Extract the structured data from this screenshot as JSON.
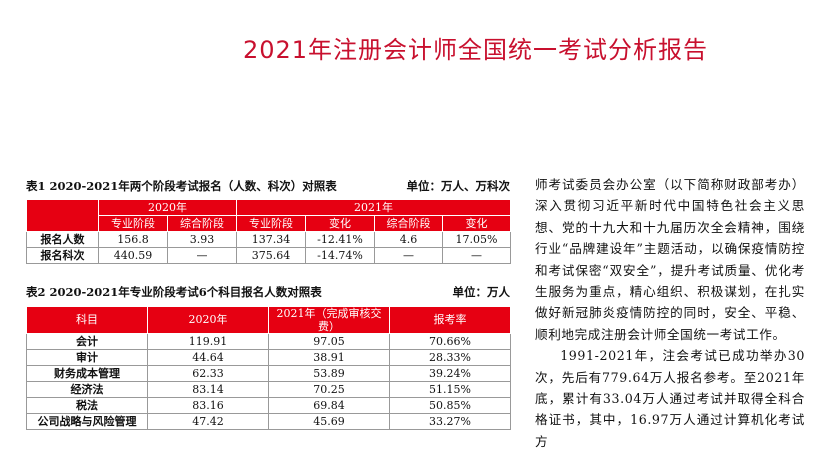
{
  "title": "2021年注册会计师全国统一考试分析报告",
  "table1": {
    "caption": "表1 2020-2021年两个阶段考试报名（人数、科次）对照表",
    "unit": "单位：万人、万科次",
    "year2020": "2020年",
    "year2021": "2021年",
    "subheaders": [
      "专业阶段",
      "综合阶段",
      "专业阶段",
      "变化",
      "综合阶段",
      "变化"
    ],
    "rows": [
      {
        "label": "报名人数",
        "cells": [
          "156.8",
          "3.93",
          "137.34",
          "-12.41%",
          "4.6",
          "17.05%"
        ]
      },
      {
        "label": "报名科次",
        "cells": [
          "440.59",
          "—",
          "375.64",
          "-14.74%",
          "—",
          "—"
        ]
      }
    ]
  },
  "table2": {
    "caption": "表2  2020-2021年专业阶段考试6个科目报名人数对照表",
    "unit": "单位：万人",
    "headers": [
      "科目",
      "2020年",
      "2021年（完成审核交费）",
      "报考率"
    ],
    "rows": [
      [
        "会计",
        "119.91",
        "97.05",
        "70.66%"
      ],
      [
        "审计",
        "44.64",
        "38.91",
        "28.33%"
      ],
      [
        "财务成本管理",
        "62.33",
        "53.89",
        "39.24%"
      ],
      [
        "经济法",
        "83.14",
        "70.25",
        "51.15%"
      ],
      [
        "税法",
        "83.16",
        "69.84",
        "50.85%"
      ],
      [
        "公司战略与风险管理",
        "47.42",
        "45.69",
        "33.27%"
      ]
    ]
  },
  "body": {
    "para1": "师考试委员会办公室（以下简称财政部考办）深入贯彻习近平新时代中国特色社会主义思想、党的十九大和十九届历次全会精神，围绕行业“品牌建设年”主题活动，以确保疫情防控和考试保密“双安全”，提升考试质量、优化考生服务为重点，精心组织、积极谋划，在扎实做好新冠肺炎疫情防控的同时，安全、平稳、顺利地完成注册会计师全国统一考试工作。",
    "para2": "1991-2021年，注会考试已成功举办30次，先后有779.64万人报名参考。至2021年底，累计有33.04万人通过考试并取得全科合格证书，其中，16.97万人通过计算机化考试方"
  }
}
